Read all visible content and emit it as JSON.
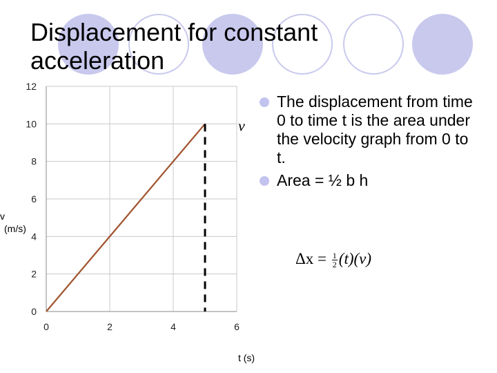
{
  "slide": {
    "title_lines": [
      "Displacement for constant",
      "acceleration"
    ],
    "bullets": [
      "The displacement from time 0 to time t is the area under the velocity graph from 0 to t.",
      "Area = ½ b h"
    ],
    "formula": {
      "delta_x": "Δx",
      "equals": "=",
      "half_num": "1",
      "half_den": "2",
      "rest": "(t)(v)"
    },
    "colors": {
      "accent_circle": "#c9c9ee",
      "circle_outline": "#c9c9ee",
      "bullet": "#c3c3ef",
      "line": "#a0522d"
    }
  },
  "chart_data": {
    "type": "line",
    "x": [
      0,
      5
    ],
    "series": [
      {
        "values": [
          0,
          10
        ]
      }
    ],
    "xlabel": "t (s)",
    "ylabel": "v\n(m/s)",
    "xlim": [
      0,
      6
    ],
    "ylim": [
      0,
      12
    ],
    "xticks": [
      0,
      2,
      4,
      6
    ],
    "yticks": [
      0,
      2,
      4,
      6,
      8,
      10,
      12
    ],
    "grid": true,
    "annotation": {
      "text": "v",
      "marker": "dashed vertical line at t = 5 from v = 0 to v = 10"
    }
  }
}
